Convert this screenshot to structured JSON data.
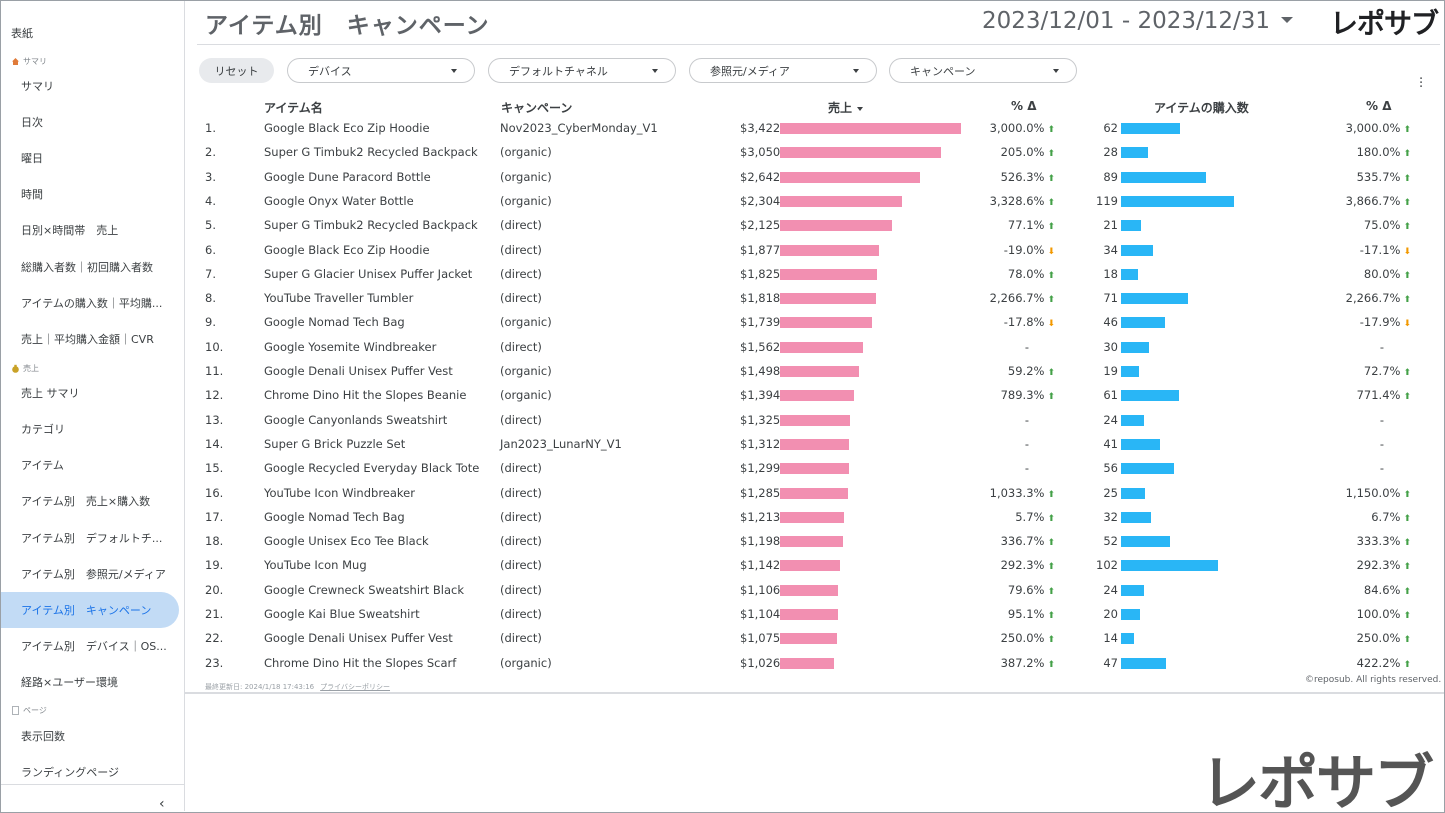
{
  "sidebar": {
    "top_label": "表紙",
    "sections": [
      {
        "label": "サマリ",
        "icon": "home-icon"
      },
      {
        "label": "売上",
        "icon": "money-bag-icon"
      },
      {
        "label": "ページ",
        "icon": "page-icon"
      }
    ],
    "items": [
      "サマリ",
      "日次",
      "曜日",
      "時間",
      "日別×時間帯　売上",
      "総購入者数｜初回購入者数",
      "アイテムの購入数｜平均購...",
      "売上｜平均購入金額｜CVR",
      "売上 サマリ",
      "カテゴリ",
      "アイテム",
      "アイテム別　売上×購入数",
      "アイテム別　デフォルトチ...",
      "アイテム別　参照元/メディア",
      "アイテム別　キャンペーン",
      "アイテム別　デバイス｜OS...",
      "経路×ユーザー環境",
      "表示回数",
      "ランディングページ"
    ],
    "active_index": 14,
    "collapse_glyph": "‹"
  },
  "header": {
    "title": "アイテム別　キャンペーン",
    "date_range": "2023/12/01 - 2023/12/31",
    "logo": "レポサブ"
  },
  "filters": {
    "reset": "リセット",
    "items": [
      "デバイス",
      "デフォルトチャネル",
      "参照元/メディア",
      "キャンペーン"
    ]
  },
  "table": {
    "columns": [
      "アイテム名",
      "キャンペーン",
      "売上",
      "% Δ",
      "アイテムの購入数",
      "% Δ"
    ],
    "rows": [
      [
        "1.",
        "Google Black Eco Zip Hoodie",
        "Nov2023_CyberMonday_V1",
        "$3,422",
        3422,
        "3,000.0%",
        "up",
        "62",
        62,
        "3,000.0%",
        "up"
      ],
      [
        "2.",
        "Super G Timbuk2 Recycled Backpack",
        "(organic)",
        "$3,050",
        3050,
        "205.0%",
        "up",
        "28",
        28,
        "180.0%",
        "up"
      ],
      [
        "3.",
        "Google Dune Paracord Bottle",
        "(organic)",
        "$2,642",
        2642,
        "526.3%",
        "up",
        "89",
        89,
        "535.7%",
        "up"
      ],
      [
        "4.",
        "Google Onyx Water Bottle",
        "(organic)",
        "$2,304",
        2304,
        "3,328.6%",
        "up",
        "119",
        119,
        "3,866.7%",
        "up"
      ],
      [
        "5.",
        "Super G Timbuk2 Recycled Backpack",
        "(direct)",
        "$2,125",
        2125,
        "77.1%",
        "up",
        "21",
        21,
        "75.0%",
        "up"
      ],
      [
        "6.",
        "Google Black Eco Zip Hoodie",
        "(direct)",
        "$1,877",
        1877,
        "-19.0%",
        "down",
        "34",
        34,
        "-17.1%",
        "down"
      ],
      [
        "7.",
        "Super G Glacier Unisex Puffer Jacket",
        "(direct)",
        "$1,825",
        1825,
        "78.0%",
        "up",
        "18",
        18,
        "80.0%",
        "up"
      ],
      [
        "8.",
        "YouTube Traveller Tumbler",
        "(direct)",
        "$1,818",
        1818,
        "2,266.7%",
        "up",
        "71",
        71,
        "2,266.7%",
        "up"
      ],
      [
        "9.",
        "Google Nomad Tech Bag",
        "(organic)",
        "$1,739",
        1739,
        "-17.8%",
        "down",
        "46",
        46,
        "-17.9%",
        "down"
      ],
      [
        "10.",
        "Google Yosemite Windbreaker",
        "(direct)",
        "$1,562",
        1562,
        "-",
        "",
        "30",
        30,
        "-",
        ""
      ],
      [
        "11.",
        "Google Denali Unisex Puffer Vest",
        "(organic)",
        "$1,498",
        1498,
        "59.2%",
        "up",
        "19",
        19,
        "72.7%",
        "up"
      ],
      [
        "12.",
        "Chrome Dino Hit the Slopes Beanie",
        "(organic)",
        "$1,394",
        1394,
        "789.3%",
        "up",
        "61",
        61,
        "771.4%",
        "up"
      ],
      [
        "13.",
        "Google Canyonlands Sweatshirt",
        "(direct)",
        "$1,325",
        1325,
        "-",
        "",
        "24",
        24,
        "-",
        ""
      ],
      [
        "14.",
        "Super G Brick Puzzle Set",
        "Jan2023_LunarNY_V1",
        "$1,312",
        1312,
        "-",
        "",
        "41",
        41,
        "-",
        ""
      ],
      [
        "15.",
        "Google Recycled Everyday Black Tote",
        "(direct)",
        "$1,299",
        1299,
        "-",
        "",
        "56",
        56,
        "-",
        ""
      ],
      [
        "16.",
        "YouTube Icon Windbreaker",
        "(direct)",
        "$1,285",
        1285,
        "1,033.3%",
        "up",
        "25",
        25,
        "1,150.0%",
        "up"
      ],
      [
        "17.",
        "Google Nomad Tech Bag",
        "(direct)",
        "$1,213",
        1213,
        "5.7%",
        "up",
        "32",
        32,
        "6.7%",
        "up"
      ],
      [
        "18.",
        "Google Unisex Eco Tee Black",
        "(direct)",
        "$1,198",
        1198,
        "336.7%",
        "up",
        "52",
        52,
        "333.3%",
        "up"
      ],
      [
        "19.",
        "YouTube Icon Mug",
        "(direct)",
        "$1,142",
        1142,
        "292.3%",
        "up",
        "102",
        102,
        "292.3%",
        "up"
      ],
      [
        "20.",
        "Google Crewneck Sweatshirt Black",
        "(direct)",
        "$1,106",
        1106,
        "79.6%",
        "up",
        "24",
        24,
        "84.6%",
        "up"
      ],
      [
        "21.",
        "Google Kai Blue Sweatshirt",
        "(direct)",
        "$1,104",
        1104,
        "95.1%",
        "up",
        "20",
        20,
        "100.0%",
        "up"
      ],
      [
        "22.",
        "Google Denali Unisex Puffer Vest",
        "(direct)",
        "$1,075",
        1075,
        "250.0%",
        "up",
        "14",
        14,
        "250.0%",
        "up"
      ],
      [
        "23.",
        "Chrome Dino Hit the Slopes Scarf",
        "(organic)",
        "$1,026",
        1026,
        "387.2%",
        "up",
        "47",
        47,
        "422.2%",
        "up"
      ]
    ],
    "sales_max": 3422,
    "qty_max": 119
  },
  "footer": {
    "last_updated": "最終更新日: 2024/1/18 17:43:16",
    "privacy": "プライバシーポリシー",
    "copyright": "©reposub. All rights reserved."
  },
  "colors": {
    "sales_bar": "#f28fb1",
    "qty_bar": "#29b6f6",
    "up_arrow": "#43a047",
    "down_arrow": "#f29900",
    "active_nav_bg": "#c2dbf5"
  },
  "icons": {
    "sort": "sort-desc-icon",
    "date_dropdown": "chevron-down-icon",
    "menu": "more-vert-icon",
    "up": "arrow-up-icon",
    "down": "arrow-down-icon"
  }
}
